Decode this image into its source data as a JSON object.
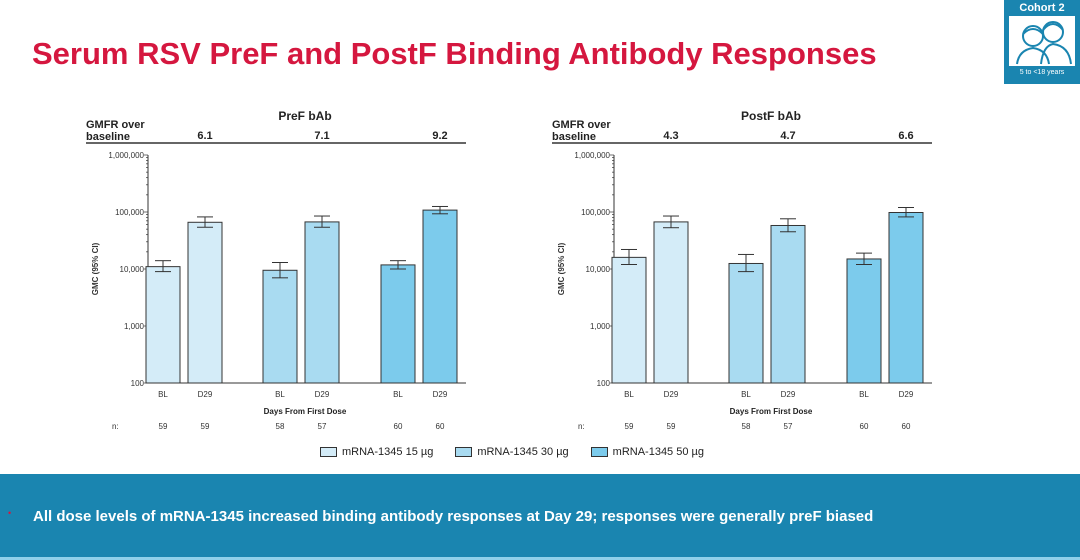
{
  "title": "Serum RSV PreF and PostF Binding Antibody Responses",
  "badge": {
    "heading": "Cohort 2",
    "subtitle": "5 to <18 years",
    "icon": "two-children-icon"
  },
  "legend": [
    {
      "label": "mRNA-1345 15 µg",
      "color": "#d4ecf8"
    },
    {
      "label": "mRNA-1345 30 µg",
      "color": "#a9dbf1"
    },
    {
      "label": "mRNA-1345 50 µg",
      "color": "#7ccbec"
    }
  ],
  "banner": {
    "bullet": "•",
    "text": "All dose levels of mRNA-1345 increased binding antibody responses at Day 29; responses were generally preF biased"
  },
  "chart_data": [
    {
      "type": "bar",
      "title": "PreF bAb",
      "gmfr_label": "GMFR over baseline",
      "gmfr": [
        "6.1",
        "7.1",
        "9.2"
      ],
      "ylabel": "GMC (95% CI)",
      "xlabel": "Days From First Dose",
      "yscale": "log",
      "ylim": [
        100,
        1000000
      ],
      "yticks": [
        "100",
        "1,000",
        "10,000",
        "100,000",
        "1,000,000"
      ],
      "categories": [
        "BL",
        "D29",
        "BL",
        "D29",
        "BL",
        "D29"
      ],
      "n_label": "n:",
      "n": [
        "59",
        "59",
        "58",
        "57",
        "60",
        "60"
      ],
      "dose_group": [
        0,
        0,
        1,
        1,
        2,
        2
      ],
      "values": [
        11000,
        66000,
        9500,
        67000,
        11800,
        108000
      ],
      "ci_low": [
        9000,
        54000,
        7000,
        54000,
        10000,
        93000
      ],
      "ci_high": [
        14000,
        82000,
        13000,
        85000,
        14000,
        125000
      ]
    },
    {
      "type": "bar",
      "title": "PostF bAb",
      "gmfr_label": "GMFR over baseline",
      "gmfr": [
        "4.3",
        "4.7",
        "6.6"
      ],
      "ylabel": "GMC (95% CI)",
      "xlabel": "Days From First Dose",
      "yscale": "log",
      "ylim": [
        100,
        1000000
      ],
      "yticks": [
        "100",
        "1,000",
        "10,000",
        "100,000",
        "1,000,000"
      ],
      "categories": [
        "BL",
        "D29",
        "BL",
        "D29",
        "BL",
        "D29"
      ],
      "n_label": "n:",
      "n": [
        "59",
        "59",
        "58",
        "57",
        "60",
        "60"
      ],
      "dose_group": [
        0,
        0,
        1,
        1,
        2,
        2
      ],
      "values": [
        16000,
        67000,
        12500,
        58000,
        15000,
        98000
      ],
      "ci_low": [
        12000,
        53000,
        9000,
        45000,
        12000,
        82000
      ],
      "ci_high": [
        22000,
        85000,
        18000,
        76000,
        19000,
        120000
      ]
    }
  ]
}
